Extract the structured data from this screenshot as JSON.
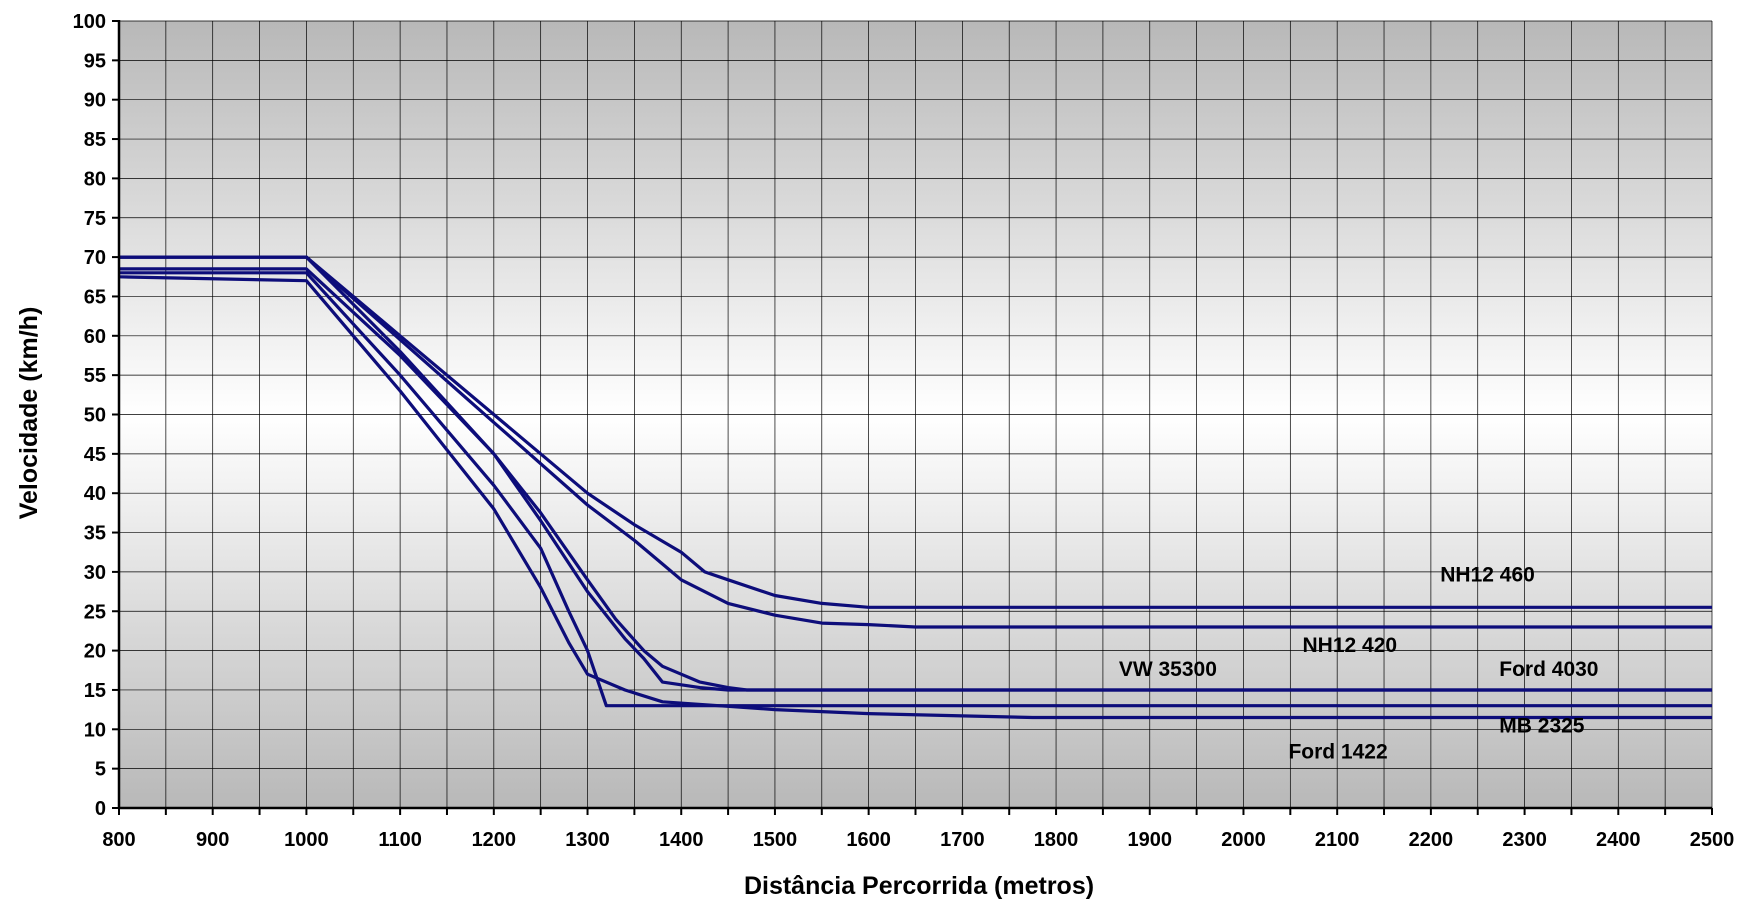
{
  "chart_data": {
    "type": "line",
    "title": "",
    "xlabel": "Distância Percorrida (metros)",
    "ylabel": "Velocidade (km/h)",
    "xlim": [
      800,
      2500
    ],
    "ylim": [
      0,
      100
    ],
    "x_major_step": 100,
    "x_minor_step": 50,
    "y_step": 5,
    "grid": true,
    "background": "vertical gradient: grey at top and bottom, white in the middle",
    "legend": "none; series labeled inline near their lines",
    "colors": {
      "line": "#0d0d7a",
      "grid": "#000000",
      "bg_edge": "#b8b8b8",
      "bg_center": "#ffffff"
    },
    "series": [
      {
        "name": "NH12 460",
        "x": [
          800,
          1000,
          1100,
          1200,
          1300,
          1350,
          1400,
          1425,
          1450,
          1500,
          1550,
          1600,
          2500
        ],
        "y": [
          70,
          70,
          60,
          50,
          40,
          36,
          32.5,
          30,
          29,
          27,
          26,
          25.5,
          25.5
        ]
      },
      {
        "name": "NH12 420",
        "x": [
          800,
          1000,
          1100,
          1200,
          1300,
          1350,
          1380,
          1400,
          1450,
          1500,
          1550,
          1600,
          1650,
          2500
        ],
        "y": [
          70,
          70,
          59.5,
          49,
          38.5,
          34,
          31,
          29,
          26,
          24.5,
          23.5,
          23.3,
          23,
          23
        ]
      },
      {
        "name": "VW 35300",
        "x": [
          800,
          1000,
          1100,
          1200,
          1250,
          1300,
          1330,
          1360,
          1380,
          1400,
          1420,
          1450,
          1470,
          2500
        ],
        "y": [
          70,
          70,
          58,
          45,
          37.5,
          29,
          24,
          20,
          18,
          17,
          16,
          15.3,
          15,
          15
        ]
      },
      {
        "name": "Ford 4030",
        "x": [
          800,
          1000,
          1100,
          1200,
          1250,
          1300,
          1340,
          1360,
          1380,
          1420,
          1450,
          2500
        ],
        "y": [
          68.5,
          68.5,
          57.5,
          45,
          36.5,
          27.5,
          21.5,
          19,
          16,
          15.3,
          15,
          15
        ]
      },
      {
        "name": "MB 2325",
        "x": [
          800,
          1000,
          1100,
          1200,
          1250,
          1280,
          1300,
          1320,
          2500
        ],
        "y": [
          68,
          68,
          55,
          41,
          33,
          25,
          20,
          13,
          13
        ]
      },
      {
        "name": "Ford 1422",
        "x": [
          800,
          1000,
          1100,
          1200,
          1250,
          1280,
          1300,
          1340,
          1380,
          1440,
          1500,
          1600,
          1700,
          1775,
          2500
        ],
        "y": [
          67.5,
          67,
          53,
          38,
          28,
          21,
          17,
          15,
          13.5,
          13,
          12.5,
          12,
          11.7,
          11.5,
          11.5
        ]
      }
    ],
    "annotations": [
      {
        "text": "NH12 460",
        "x": 2210,
        "y": 28.8
      },
      {
        "text": "NH12 420",
        "x": 2063,
        "y": 19.8
      },
      {
        "text": "VW 35300",
        "x": 1867,
        "y": 16.8
      },
      {
        "text": "Ford 4030",
        "x": 2273,
        "y": 16.8
      },
      {
        "text": "MB 2325",
        "x": 2273,
        "y": 9.6
      },
      {
        "text": "Ford 1422",
        "x": 2048,
        "y": 6.3
      }
    ]
  }
}
